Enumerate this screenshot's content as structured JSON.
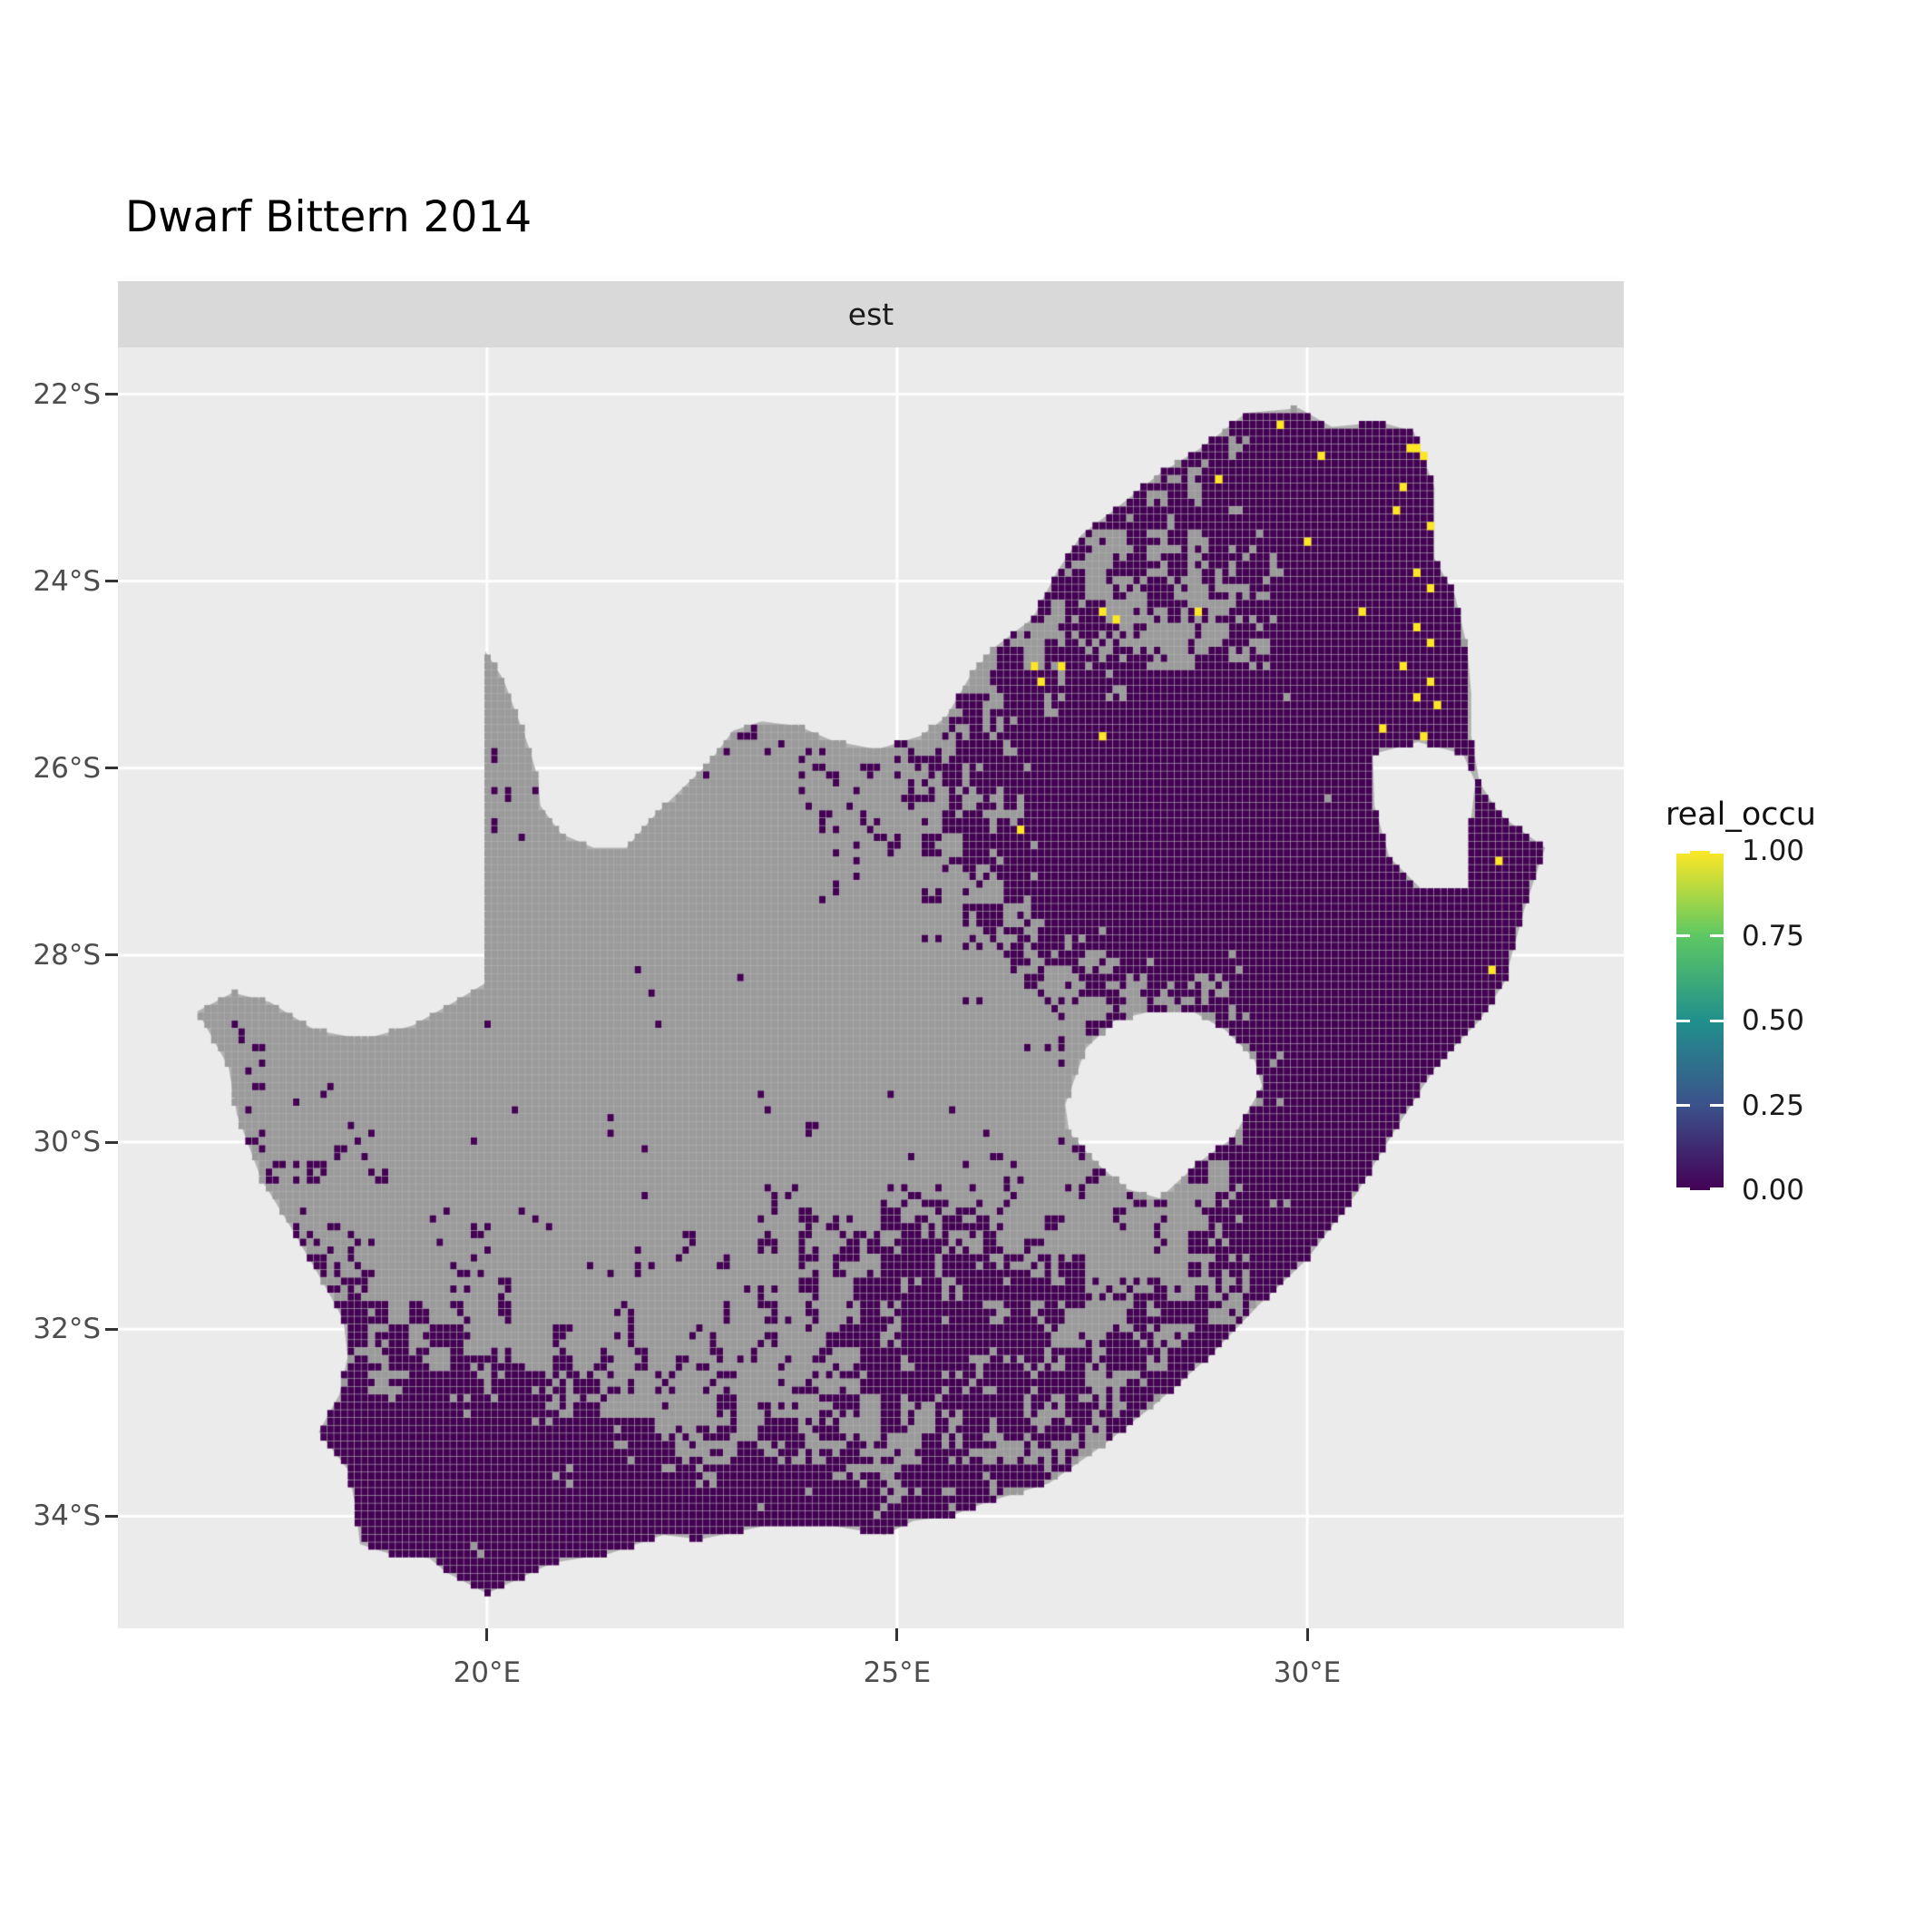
{
  "chart_data": {
    "type": "heatmap",
    "title": "Dwarf Bittern 2014",
    "facet_label": "est",
    "x_axis": {
      "ticks": [
        20,
        25,
        30
      ],
      "labels": [
        "20°E",
        "25°E",
        "30°E"
      ]
    },
    "y_axis": {
      "ticks": [
        22,
        24,
        26,
        28,
        30,
        32,
        34
      ],
      "labels": [
        "22°S",
        "24°S",
        "26°S",
        "28°S",
        "30°S",
        "32°S",
        "34°S"
      ]
    },
    "legend": {
      "title": "real_occu",
      "breaks": [
        1.0,
        0.75,
        0.5,
        0.25,
        0.0
      ],
      "labels": [
        "1.00",
        "0.75",
        "0.50",
        "0.25",
        "0.00"
      ],
      "viridis_stops": [
        "#FDE725",
        "#5DC863",
        "#21908C",
        "#3B528B",
        "#440154"
      ]
    },
    "colors": {
      "panel_bg": "#EBEBEB",
      "strip_bg": "#D9D9D9",
      "grid": "#FFFFFF",
      "na_cell": "#9B9B9B",
      "zero_cell": "#440154",
      "one_cell": "#FDE725",
      "silhouette": "#B2B2B2"
    },
    "projection": {
      "lon_min": 15.5,
      "lon_max": 33.86,
      "lat_top": -21.5,
      "lat_bottom": -35.2
    },
    "map": {
      "cell_deg": 0.0833,
      "outline": [
        [
          19.98,
          -24.75
        ],
        [
          20.2,
          -25.05
        ],
        [
          20.35,
          -25.4
        ],
        [
          20.5,
          -25.75
        ],
        [
          20.62,
          -26.1
        ],
        [
          20.65,
          -26.4
        ],
        [
          20.9,
          -26.7
        ],
        [
          21.3,
          -26.85
        ],
        [
          21.7,
          -26.85
        ],
        [
          22.05,
          -26.5
        ],
        [
          22.4,
          -26.2
        ],
        [
          22.7,
          -25.95
        ],
        [
          23.0,
          -25.6
        ],
        [
          23.35,
          -25.5
        ],
        [
          23.8,
          -25.55
        ],
        [
          24.2,
          -25.7
        ],
        [
          24.75,
          -25.8
        ],
        [
          25.3,
          -25.65
        ],
        [
          25.6,
          -25.45
        ],
        [
          25.9,
          -25.0
        ],
        [
          26.2,
          -24.7
        ],
        [
          26.65,
          -24.4
        ],
        [
          26.95,
          -23.9
        ],
        [
          27.25,
          -23.5
        ],
        [
          27.7,
          -23.2
        ],
        [
          28.2,
          -22.85
        ],
        [
          28.75,
          -22.55
        ],
        [
          29.25,
          -22.2
        ],
        [
          29.9,
          -22.15
        ],
        [
          30.3,
          -22.35
        ],
        [
          30.9,
          -22.3
        ],
        [
          31.3,
          -22.4
        ],
        [
          31.55,
          -23.0
        ],
        [
          31.55,
          -23.75
        ],
        [
          31.8,
          -24.15
        ],
        [
          31.95,
          -24.7
        ],
        [
          32.0,
          -25.2
        ],
        [
          32.0,
          -25.65
        ],
        [
          32.1,
          -26.15
        ],
        [
          32.35,
          -26.5
        ],
        [
          32.9,
          -26.85
        ],
        [
          32.65,
          -27.5
        ],
        [
          32.4,
          -28.3
        ],
        [
          32.1,
          -28.7
        ],
        [
          31.6,
          -29.15
        ],
        [
          31.05,
          -29.9
        ],
        [
          30.6,
          -30.55
        ],
        [
          30.0,
          -31.25
        ],
        [
          29.4,
          -31.75
        ],
        [
          28.8,
          -32.3
        ],
        [
          28.15,
          -32.8
        ],
        [
          27.5,
          -33.25
        ],
        [
          26.85,
          -33.65
        ],
        [
          26.1,
          -33.85
        ],
        [
          25.65,
          -34.0
        ],
        [
          25.2,
          -34.05
        ],
        [
          24.85,
          -34.2
        ],
        [
          24.2,
          -34.1
        ],
        [
          23.4,
          -34.1
        ],
        [
          22.6,
          -34.25
        ],
        [
          22.15,
          -34.2
        ],
        [
          21.5,
          -34.4
        ],
        [
          20.8,
          -34.5
        ],
        [
          20.0,
          -34.83
        ],
        [
          19.5,
          -34.6
        ],
        [
          19.3,
          -34.45
        ],
        [
          18.8,
          -34.4
        ],
        [
          18.45,
          -34.3
        ],
        [
          18.4,
          -33.9
        ],
        [
          18.3,
          -33.5
        ],
        [
          17.95,
          -33.1
        ],
        [
          18.2,
          -32.7
        ],
        [
          18.3,
          -32.3
        ],
        [
          18.25,
          -31.9
        ],
        [
          18.0,
          -31.5
        ],
        [
          17.6,
          -30.9
        ],
        [
          17.25,
          -30.4
        ],
        [
          16.95,
          -29.7
        ],
        [
          16.85,
          -29.2
        ],
        [
          16.47,
          -28.6
        ],
        [
          16.9,
          -28.4
        ],
        [
          17.35,
          -28.5
        ],
        [
          17.9,
          -28.8
        ],
        [
          18.5,
          -28.9
        ],
        [
          19.1,
          -28.75
        ],
        [
          19.6,
          -28.5
        ],
        [
          19.98,
          -28.3
        ]
      ],
      "holes": [
        [
          [
            27.05,
            -29.6
          ],
          [
            27.3,
            -29.0
          ],
          [
            27.65,
            -28.7
          ],
          [
            28.1,
            -28.6
          ],
          [
            28.6,
            -28.6
          ],
          [
            29.0,
            -28.8
          ],
          [
            29.35,
            -29.1
          ],
          [
            29.45,
            -29.4
          ],
          [
            29.1,
            -29.95
          ],
          [
            28.7,
            -30.2
          ],
          [
            28.2,
            -30.6
          ],
          [
            27.8,
            -30.5
          ],
          [
            27.4,
            -30.2
          ],
          [
            27.1,
            -29.9
          ]
        ],
        [
          [
            30.8,
            -25.85
          ],
          [
            31.35,
            -25.72
          ],
          [
            31.9,
            -25.85
          ],
          [
            32.05,
            -26.15
          ],
          [
            31.97,
            -26.75
          ],
          [
            31.97,
            -27.3
          ],
          [
            31.4,
            -27.3
          ],
          [
            31.0,
            -26.95
          ],
          [
            30.82,
            -26.4
          ]
        ]
      ],
      "purple_base_prob": 0.3,
      "prob_blobs": [
        [
          28.1,
          -26.4,
          1.5,
          1.2,
          1.0
        ],
        [
          29.6,
          -23.3,
          1.7,
          1.0,
          0.6
        ],
        [
          31.2,
          -23.6,
          0.8,
          1.6,
          0.7
        ],
        [
          31.0,
          -28.9,
          1.3,
          1.6,
          0.8
        ],
        [
          32.2,
          -27.0,
          0.8,
          1.2,
          0.6
        ],
        [
          29.5,
          -26.6,
          1.0,
          0.9,
          0.5
        ],
        [
          19.6,
          -33.9,
          1.4,
          0.9,
          0.9
        ],
        [
          23.5,
          -34.1,
          2.5,
          0.6,
          0.6
        ],
        [
          25.3,
          -31.7,
          0.8,
          0.8,
          0.55
        ],
        [
          30.2,
          -30.8,
          1.0,
          0.8,
          0.5
        ],
        [
          27.3,
          -32.6,
          1.3,
          0.8,
          0.35
        ],
        [
          18.1,
          -31.8,
          0.7,
          1.2,
          0.35
        ],
        [
          19.5,
          -29.6,
          2.2,
          1.5,
          -0.28
        ],
        [
          24.0,
          -29.0,
          2.2,
          1.8,
          -0.18
        ],
        [
          21.5,
          -26.8,
          2.0,
          1.2,
          -0.18
        ],
        [
          28.6,
          -24.6,
          1.0,
          0.8,
          -0.35
        ],
        [
          26.6,
          -29.4,
          1.2,
          1.0,
          -0.15
        ]
      ],
      "yellow_cells": [
        [
          31.2,
          -22.5
        ],
        [
          31.3,
          -22.5
        ],
        [
          31.38,
          -22.6
        ],
        [
          29.6,
          -22.3
        ],
        [
          30.15,
          -22.6
        ],
        [
          28.9,
          -22.85
        ],
        [
          31.15,
          -22.95
        ],
        [
          31.05,
          -23.2
        ],
        [
          31.45,
          -23.35
        ],
        [
          30.0,
          -23.5
        ],
        [
          31.3,
          -23.9
        ],
        [
          31.45,
          -24.05
        ],
        [
          27.45,
          -24.3
        ],
        [
          27.6,
          -24.35
        ],
        [
          28.65,
          -24.3
        ],
        [
          31.3,
          -24.45
        ],
        [
          31.45,
          -24.6
        ],
        [
          31.15,
          -24.9
        ],
        [
          31.5,
          -25.0
        ],
        [
          31.3,
          -25.2
        ],
        [
          31.55,
          -25.3
        ],
        [
          26.6,
          -24.9
        ],
        [
          26.75,
          -25.0
        ],
        [
          26.95,
          -24.9
        ],
        [
          27.5,
          -25.6
        ],
        [
          31.35,
          -25.6
        ],
        [
          26.5,
          -26.6
        ],
        [
          32.3,
          -26.95
        ],
        [
          32.25,
          -28.1
        ],
        [
          30.6,
          -24.3
        ],
        [
          30.9,
          -25.5
        ]
      ]
    }
  }
}
